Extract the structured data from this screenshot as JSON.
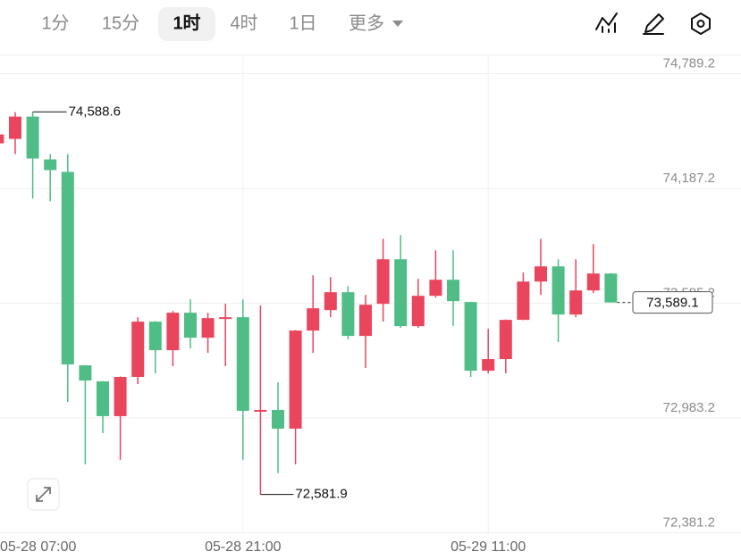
{
  "toolbar": {
    "tabs": [
      "1分",
      "15分",
      "1时",
      "4时",
      "1日",
      "更多"
    ],
    "active": 2
  },
  "chart_data": {
    "type": "candlestick",
    "categories": [
      "05-28 07:00",
      null,
      null,
      null,
      null,
      null,
      null,
      null,
      null,
      null,
      null,
      null,
      null,
      null,
      "05-28 21:00",
      null,
      null,
      null,
      null,
      null,
      null,
      null,
      null,
      null,
      null,
      null,
      null,
      null,
      "05-29 11:00",
      null,
      null,
      null,
      null,
      null,
      null,
      null
    ],
    "open": [
      74423.7,
      74447.1,
      74564.0,
      74339.5,
      74274.1,
      73259.4,
      73175.2,
      72992.9,
      73198.6,
      73488.5,
      73338.9,
      73535.3,
      73404.3,
      73502.5,
      73511.9,
      73016.2,
      73025.6,
      72927.4,
      73441.8,
      73549.3,
      73642.8,
      73413.7,
      73582.0,
      73815.8,
      73465.1,
      73624.1,
      73708.3,
      73591.4,
      73231.3,
      73292.1,
      73497.9,
      73698.9,
      73778.4,
      73525.9,
      73652.2,
      73741.0
    ],
    "high": [
      74496.0,
      74587.4,
      74588.6,
      74367.6,
      74367.6,
      73261.0,
      73176.5,
      73201.0,
      73511.9,
      73491.0,
      73544.6,
      73605.4,
      73535.3,
      73582.0,
      73605.4,
      73572.7,
      73170.5,
      73444.0,
      73731.7,
      73722.3,
      73675.6,
      73628.8,
      73923.4,
      73942.1,
      73713.0,
      73862.6,
      73862.6,
      73593.0,
      73451.1,
      73500.0,
      73745.7,
      73923.4,
      73815.8,
      73815.8,
      73895.3,
      73743.0
    ],
    "low": [
      74236.7,
      74367.6,
      74133.8,
      74119.8,
      73067.7,
      72740.4,
      72904.0,
      72763.8,
      73161.2,
      73217.3,
      73254.7,
      73348.2,
      73324.9,
      73254.7,
      72763.8,
      72581.9,
      72693.6,
      72740.4,
      73324.9,
      73511.9,
      73395.0,
      73245.4,
      73488.5,
      73455.8,
      73455.8,
      73614.8,
      73465.1,
      73198.6,
      73217.3,
      73217.3,
      73496.0,
      73628.8,
      73381.0,
      73511.9,
      73638.1,
      73589.1
    ],
    "close": [
      74470.5,
      74564.0,
      74344.2,
      74283.4,
      73264.1,
      73179.9,
      72992.9,
      73198.6,
      73488.5,
      73338.9,
      73535.3,
      73404.3,
      73507.2,
      73511.9,
      73020.9,
      73025.6,
      72927.4,
      73441.8,
      73558.7,
      73642.8,
      73413.7,
      73577.4,
      73815.8,
      73465.1,
      73624.1,
      73708.3,
      73596.1,
      73231.3,
      73292.1,
      73497.9,
      73698.9,
      73778.4,
      73525.9,
      73652.2,
      73741.0,
      73589.1
    ],
    "up_color": "#e9455c",
    "down_color": "#4fbd85",
    "ylim": [
      72374.2,
      74885.2
    ],
    "yticks": [
      {
        "value": 74789.2,
        "label": "74,789.2"
      },
      {
        "value": 74187.2,
        "label": "74,187.2"
      },
      {
        "value": 73585.2,
        "label": "73,585.2"
      },
      {
        "value": 72983.2,
        "label": "72,983.2"
      },
      {
        "value": 72381.2,
        "label": "72,381.2"
      }
    ],
    "grid": true,
    "annotations": [
      {
        "label": "74,588.6"
      },
      {
        "label": "72,581.9"
      }
    ],
    "last_price_label": "73,589.1"
  }
}
